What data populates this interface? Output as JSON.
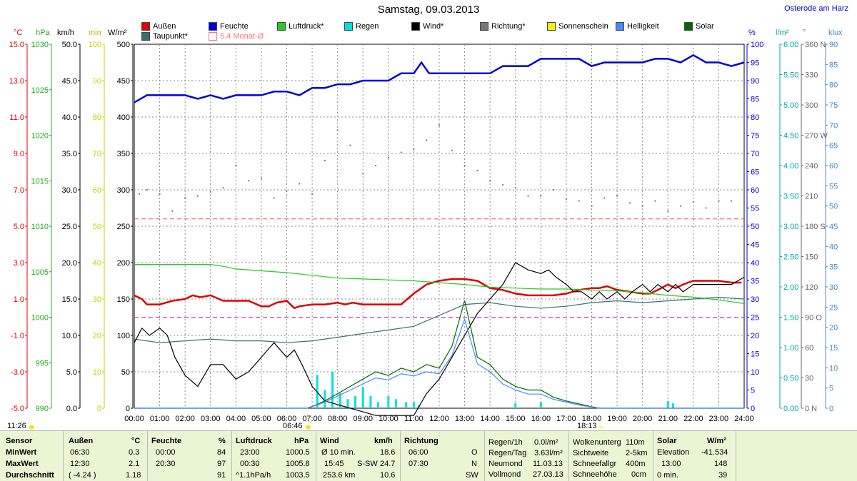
{
  "title": "Samstag, 09.03.2013",
  "station": "Osterode am Harz",
  "legend": [
    {
      "label": "Außen",
      "color": "#dd0000"
    },
    {
      "label": "Feuchte",
      "color": "#0000dd"
    },
    {
      "label": "Luftdruck*",
      "color": "#22cc22"
    },
    {
      "label": "Regen",
      "color": "#00dddd"
    },
    {
      "label": "Wind*",
      "color": "#000000"
    },
    {
      "label": "Richtung*",
      "color": "#777777"
    },
    {
      "label": "Sonnenschein",
      "color": "#ffee00"
    },
    {
      "label": "Helligkeit",
      "color": "#4488ff"
    },
    {
      "label": "Solar",
      "color": "#006600"
    },
    {
      "label": "Taupunkt*",
      "color": "#3a7070"
    },
    {
      "label": "5.4 Monat-Ø",
      "color": "#ff7777"
    }
  ],
  "units": {
    "temp": "°C",
    "pressure": "hPa",
    "wind": "km/h",
    "sun": "min",
    "solar": "W/m²",
    "humidity": "%",
    "rain": "l/m²",
    "dir": "°",
    "bright": "klux"
  },
  "markers": {
    "sunrise": "06:46",
    "sunset": "18:13",
    "now": "11:26"
  },
  "chart_data": {
    "type": "line",
    "xlabel": "",
    "x_ticks": [
      "00:00",
      "01:00",
      "02:00",
      "03:00",
      "04:00",
      "05:00",
      "06:00",
      "07:00",
      "08:00",
      "09:00",
      "10:00",
      "11:00",
      "12:00",
      "13:00",
      "14:00",
      "15:00",
      "16:00",
      "17:00",
      "18:00",
      "19:00",
      "20:00",
      "21:00",
      "22:00",
      "23:00",
      "24:00"
    ],
    "xlim": [
      0,
      24
    ],
    "grid": true,
    "axes": {
      "temp": {
        "color": "#dd0000",
        "ticks": [
          "15.0",
          "13.0",
          "11.0",
          "9.0",
          "7.0",
          "5.0",
          "3.0",
          "1.0",
          "-1.0",
          "-3.0",
          "-5.0"
        ],
        "lim": [
          -5,
          15
        ]
      },
      "pressure": {
        "color": "#22aa22",
        "ticks": [
          "1030",
          "1025",
          "1020",
          "1015",
          "1010",
          "1005",
          "1000",
          "995",
          "990"
        ],
        "lim": [
          990,
          1030
        ]
      },
      "wind": {
        "color": "#000000",
        "ticks": [
          "50.0",
          "45.0",
          "40.0",
          "35.0",
          "30.0",
          "25.0",
          "20.0",
          "15.0",
          "10.0",
          "5.0",
          "0.0"
        ],
        "lim": [
          0,
          50
        ]
      },
      "sun": {
        "color": "#cccc00",
        "ticks": [
          "100",
          "90",
          "80",
          "70",
          "60",
          "50",
          "40",
          "30",
          "20",
          "10",
          "0"
        ],
        "lim": [
          0,
          100
        ]
      },
      "solar": {
        "color": "#000000",
        "ticks": [
          "500",
          "450",
          "400",
          "350",
          "300",
          "250",
          "200",
          "150",
          "100",
          "50",
          "0"
        ],
        "lim": [
          0,
          500
        ]
      },
      "humidity": {
        "color": "#0000cc",
        "ticks": [
          "100",
          "95",
          "90",
          "85",
          "80",
          "75",
          "70",
          "65",
          "60",
          "55",
          "50",
          "45",
          "40",
          "35",
          "30",
          "25",
          "20",
          "15",
          "10",
          "5",
          "0"
        ],
        "lim": [
          0,
          100
        ]
      },
      "rain": {
        "color": "#00aaaa",
        "ticks": [
          "6.00",
          "5.50",
          "5.00",
          "4.50",
          "4.00",
          "3.50",
          "3.00",
          "2.50",
          "2.00",
          "1.50",
          "1.00",
          "0.50",
          "0.00"
        ],
        "lim": [
          0,
          6
        ]
      },
      "dir": {
        "color": "#666666",
        "ticks": [
          "360 N",
          "330",
          "300",
          "270 W",
          "240",
          "210",
          "180 S",
          "150",
          "120",
          "90 O",
          "60",
          "30",
          "0 N"
        ],
        "lim": [
          0,
          360
        ]
      },
      "bright": {
        "color": "#4488cc",
        "ticks": [
          "90",
          "85",
          "80",
          "75",
          "70",
          "65",
          "60",
          "55",
          "50",
          "45",
          "40",
          "35",
          "30",
          "25",
          "20",
          "15",
          "10",
          "5",
          "0"
        ],
        "lim": [
          0,
          90
        ]
      }
    },
    "series": [
      {
        "name": "Außen",
        "axis": "temp",
        "color": "#dd0000",
        "x": [
          0,
          0.3,
          0.5,
          1,
          1.5,
          2,
          2.3,
          2.6,
          3,
          3.5,
          4,
          4.5,
          5,
          5.3,
          5.6,
          6,
          6.3,
          6.5,
          7,
          7.5,
          8,
          8.3,
          8.6,
          9,
          9.5,
          10,
          10.5,
          11,
          11.5,
          12,
          12.5,
          13,
          13.5,
          14,
          14.5,
          15,
          15.5,
          16,
          16.5,
          17,
          17.5,
          18,
          18.3,
          18.6,
          19,
          19.5,
          20,
          20.3,
          20.6,
          21,
          21.3,
          21.6,
          22,
          22.5,
          23,
          23.5,
          23.9
        ],
        "y": [
          1.2,
          1.0,
          0.7,
          0.7,
          0.9,
          1.0,
          1.2,
          1.1,
          1.2,
          0.9,
          0.9,
          0.9,
          0.6,
          0.6,
          0.8,
          0.9,
          0.5,
          0.6,
          0.7,
          0.7,
          0.8,
          0.7,
          0.8,
          0.7,
          0.7,
          0.7,
          0.7,
          1.3,
          1.8,
          2.0,
          2.1,
          2.1,
          2.0,
          1.6,
          1.5,
          1.3,
          1.2,
          1.2,
          1.2,
          1.3,
          1.5,
          1.6,
          1.6,
          1.7,
          1.5,
          1.4,
          1.3,
          1.3,
          1.5,
          1.8,
          1.6,
          1.8,
          2.0,
          2.0,
          2.0,
          1.9,
          1.9
        ]
      },
      {
        "name": "Feuchte",
        "axis": "humidity",
        "color": "#0000dd",
        "x": [
          0,
          0.5,
          1,
          2,
          2.5,
          3,
          3.5,
          4,
          5,
          5.5,
          6,
          6.5,
          7,
          7.5,
          8,
          8.5,
          9,
          9.5,
          10,
          10.5,
          11,
          11.3,
          11.6,
          12,
          12.5,
          13,
          13.5,
          14,
          14.5,
          15,
          15.5,
          16,
          16.5,
          17,
          17.5,
          18,
          18.5,
          19,
          19.5,
          20,
          20.5,
          21,
          21.5,
          22,
          22.5,
          23,
          23.5,
          24
        ],
        "y": [
          84,
          86,
          86,
          86,
          85,
          86,
          85,
          86,
          86,
          87,
          87,
          86,
          88,
          88,
          89,
          89,
          90,
          90,
          90,
          92,
          92,
          95,
          92,
          92,
          92,
          92,
          92,
          92,
          94,
          94,
          94,
          96,
          96,
          96,
          96,
          94,
          95,
          95,
          95,
          95,
          96,
          96,
          95,
          97,
          95,
          95,
          94,
          95
        ]
      },
      {
        "name": "Luftdruck*",
        "axis": "pressure",
        "color": "#22cc22",
        "x": [
          0,
          1,
          2,
          3,
          3.5,
          4,
          5,
          6,
          7,
          8,
          9,
          10,
          11,
          12,
          13,
          14,
          15,
          16,
          17,
          18,
          19,
          20,
          21,
          22,
          23,
          24
        ],
        "y": [
          1005.8,
          1005.8,
          1005.8,
          1005.8,
          1005.6,
          1005.3,
          1005.1,
          1004.9,
          1004.6,
          1004.3,
          1004.2,
          1004.1,
          1004.0,
          1003.8,
          1003.6,
          1003.3,
          1003.2,
          1003.1,
          1003.1,
          1003.0,
          1002.9,
          1002.7,
          1002.4,
          1002.2,
          1001.9,
          1001.5
        ]
      },
      {
        "name": "Taupunkt*",
        "axis": "temp",
        "color": "#3a7070",
        "x": [
          0,
          1,
          2,
          3,
          4,
          5,
          6,
          7,
          8,
          9,
          10,
          11,
          12,
          13,
          14,
          15,
          16,
          17,
          18,
          19,
          20,
          21,
          22,
          23,
          24
        ],
        "y": [
          -1.2,
          -1.4,
          -1.3,
          -1.2,
          -1.3,
          -1.3,
          -1.4,
          -1.3,
          -1.1,
          -0.9,
          -0.7,
          -0.5,
          0.1,
          0.7,
          0.8,
          0.6,
          0.5,
          0.6,
          0.8,
          0.9,
          0.8,
          0.9,
          1.0,
          1.1,
          1.0
        ]
      },
      {
        "name": "Wind*",
        "axis": "wind",
        "color": "#000000",
        "x": [
          0,
          0.3,
          0.6,
          1,
          1.3,
          1.6,
          2,
          2.5,
          3,
          3.5,
          4,
          4.5,
          5,
          5.5,
          6,
          6.3,
          6.6,
          7,
          7.5,
          8,
          8.5,
          9,
          9.5,
          10,
          10.5,
          11,
          11.5,
          12,
          12.5,
          13,
          13.5,
          14,
          14.5,
          15,
          15.5,
          16,
          16.3,
          16.6,
          17,
          17.3,
          17.6,
          18,
          18.3,
          18.6,
          19,
          19.3,
          19.6,
          20,
          20.3,
          20.6,
          21,
          21.3,
          21.6,
          22,
          22.5,
          23,
          23.5,
          24
        ],
        "y": [
          9,
          11,
          10,
          11,
          10,
          7,
          4.5,
          3,
          6,
          6,
          4,
          5,
          7,
          9,
          7,
          8,
          6,
          3,
          1,
          0.5,
          0,
          -0.5,
          -1,
          -1,
          -1,
          -1,
          2,
          4,
          7,
          10,
          13,
          15,
          17,
          20,
          19,
          18.5,
          19,
          18,
          17,
          16,
          16,
          15,
          16,
          15,
          16,
          15,
          16,
          17,
          16,
          17,
          16,
          17,
          16,
          17,
          17,
          17,
          17,
          18
        ]
      },
      {
        "name": "Richtung*",
        "axis": "dir",
        "color": "#777777",
        "x": [
          0.2,
          0.5,
          1,
          1.5,
          2,
          2.5,
          3,
          3.5,
          4,
          4.5,
          5,
          5.5,
          6,
          6.5,
          7,
          7.5,
          8,
          8.5,
          9,
          9.5,
          10,
          10.5,
          11,
          11.5,
          12,
          12.5,
          13,
          13.5,
          14,
          14.5,
          15,
          15.5,
          16,
          16.5,
          17,
          17.5,
          18,
          18.5,
          19,
          19.5,
          20,
          20.5,
          21,
          21.5,
          22,
          22.5,
          23,
          23.5
        ],
        "y": [
          212,
          216,
          212,
          195,
          208,
          210,
          214,
          218,
          240,
          225,
          227,
          208,
          215,
          222,
          212,
          245,
          275,
          260,
          232,
          240,
          248,
          253,
          256,
          265,
          280,
          255,
          240,
          235,
          225,
          221,
          218,
          210,
          210,
          216,
          207,
          205,
          200,
          208,
          210,
          203,
          200,
          205,
          195,
          200,
          204,
          198,
          205,
          205
        ]
      },
      {
        "name": "Solar",
        "axis": "solar",
        "color": "#006600",
        "x": [
          0,
          6.8,
          7.2,
          7.6,
          8,
          8.5,
          9,
          9.5,
          10,
          10.5,
          11,
          11.5,
          12,
          12.5,
          13,
          13.5,
          14,
          14.5,
          15,
          15.5,
          16,
          16.5,
          17,
          17.5,
          18,
          18.3,
          24
        ],
        "y": [
          0,
          0,
          5,
          12,
          20,
          30,
          40,
          50,
          45,
          55,
          50,
          60,
          55,
          85,
          148,
          70,
          60,
          40,
          30,
          25,
          25,
          15,
          10,
          6,
          2,
          0,
          0
        ]
      },
      {
        "name": "Helligkeit",
        "axis": "bright",
        "color": "#4488ff",
        "x": [
          0,
          6.8,
          7.2,
          7.6,
          8,
          8.5,
          9,
          9.5,
          10,
          10.5,
          11,
          11.5,
          12,
          12.5,
          13,
          13.5,
          14,
          14.5,
          15,
          15.5,
          16,
          16.5,
          17,
          17.5,
          18,
          18.3,
          24
        ],
        "y": [
          0,
          0,
          0.8,
          1.8,
          3,
          4.5,
          6,
          7.5,
          7,
          8.5,
          8,
          9,
          8.5,
          13,
          22,
          11,
          9,
          6,
          4.5,
          3.5,
          3.5,
          2.2,
          1.5,
          0.8,
          0.3,
          0,
          0
        ]
      }
    ],
    "rain_bars": {
      "axis": "rain",
      "x": [
        7.2,
        7.5,
        7.8,
        8.1,
        8.4,
        8.7,
        9.0,
        9.3,
        9.6,
        10.0,
        10.3,
        10.7,
        11.0,
        11.2,
        15.0,
        16.0,
        21.0,
        21.2
      ],
      "y": [
        0.55,
        0.3,
        0.6,
        0.25,
        0.15,
        0.2,
        0.35,
        0.2,
        0.1,
        0.2,
        0.15,
        0.1,
        0.1,
        0.05,
        0.08,
        0.1,
        0.12,
        0.08
      ]
    },
    "reference_lines": [
      {
        "name": "5.4 Monat-Ø",
        "axis": "temp",
        "value": 5.4,
        "color": "#ff4444"
      },
      {
        "name": "humidity-ref",
        "axis": "humidity",
        "value": 25,
        "color": "#cc22cc"
      }
    ]
  },
  "stats": {
    "sensor": {
      "header": "Sensor",
      "rows": [
        "MinWert",
        "MaxWert",
        "Durchschnitt"
      ]
    },
    "aussen": {
      "header": "Außen",
      "unit": "°C",
      "rows": [
        [
          "06:30",
          "0.3"
        ],
        [
          "12:30",
          "2.1"
        ],
        [
          "( -4.24 )",
          "1.18"
        ]
      ]
    },
    "feuchte": {
      "header": "Feuchte",
      "unit": "%",
      "rows": [
        [
          "00:00",
          "84"
        ],
        [
          "20:30",
          "97"
        ],
        [
          "",
          "91"
        ]
      ]
    },
    "luftdruck": {
      "header": "Luftdruck",
      "unit": "hPa",
      "rows": [
        [
          "23:00",
          "1000.5"
        ],
        [
          "00:30",
          "1005.8"
        ],
        [
          "^1.1hPa/h",
          "1003.5"
        ]
      ]
    },
    "wind": {
      "header": "Wind",
      "unit": "km/h",
      "rows": [
        [
          "Ø 10 min.",
          "",
          "18.6"
        ],
        [
          "15:45",
          "S-SW",
          "24.7"
        ],
        [
          "253.6 km",
          "",
          "10.6"
        ]
      ]
    },
    "richtung": {
      "header": "Richtung",
      "rows": [
        [
          "06:00",
          "O"
        ],
        [
          "07:30",
          "N"
        ],
        [
          "",
          "SW"
        ]
      ]
    },
    "regen": {
      "rows": [
        [
          "Regen/1h",
          "0.0l/m²"
        ],
        [
          "Regen/Tag",
          "3.63l/m²"
        ],
        [
          "Neumond",
          "11.03.13"
        ],
        [
          "Vollmond",
          "27.03.13"
        ]
      ]
    },
    "wolken": {
      "rows": [
        [
          "Wolkenunterg",
          "110m"
        ],
        [
          "Sichtweite",
          "2-5km"
        ],
        [
          "Schneefallgr",
          "400m"
        ],
        [
          "Schneehöhe",
          "0cm"
        ]
      ]
    },
    "solar": {
      "header": "Solar",
      "unit": "W/m²",
      "rows": [
        [
          "Elevation",
          "-41.534"
        ],
        [
          "13:00",
          "148"
        ],
        [
          "0 min.",
          "39"
        ]
      ]
    }
  }
}
